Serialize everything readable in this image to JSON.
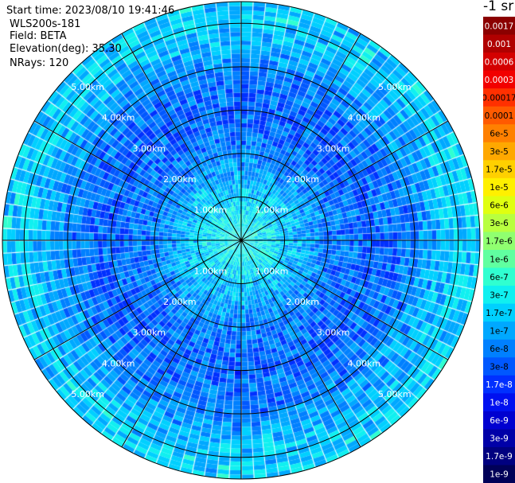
{
  "info": {
    "start_time": "Start time: 2023/08/10 19:41:46",
    "instrument": "WLS200s-181",
    "field": "Field: BETA",
    "elevation": "Elevation(deg): 35.30",
    "nrays": "NRays: 120"
  },
  "colorbar": {
    "unit_title": "-1 sr",
    "entries": [
      {
        "label": "0.0017",
        "color": "#8b0000",
        "text_color": "#ffffff"
      },
      {
        "label": "0.001",
        "color": "#b00000",
        "text_color": "#ffffff"
      },
      {
        "label": "0.0006",
        "color": "#d40000",
        "text_color": "#ffffff"
      },
      {
        "label": "0.0003",
        "color": "#f20000",
        "text_color": "#ffffff"
      },
      {
        "label": "0.00017",
        "color": "#ff3000",
        "text_color": "#000000"
      },
      {
        "label": "0.0001",
        "color": "#ff5a00",
        "text_color": "#000000"
      },
      {
        "label": "6e-5",
        "color": "#ff8000",
        "text_color": "#000000"
      },
      {
        "label": "3e-5",
        "color": "#ffa800",
        "text_color": "#000000"
      },
      {
        "label": "1.7e-5",
        "color": "#ffd000",
        "text_color": "#000000"
      },
      {
        "label": "1e-5",
        "color": "#fff000",
        "text_color": "#000000"
      },
      {
        "label": "6e-6",
        "color": "#e0ff10",
        "text_color": "#000000"
      },
      {
        "label": "3e-6",
        "color": "#b8ff40",
        "text_color": "#000000"
      },
      {
        "label": "1.7e-6",
        "color": "#90ff70",
        "text_color": "#000000"
      },
      {
        "label": "1e-6",
        "color": "#60ffa0",
        "text_color": "#000000"
      },
      {
        "label": "6e-7",
        "color": "#30ffd0",
        "text_color": "#000000"
      },
      {
        "label": "3e-7",
        "color": "#10f0f0",
        "text_color": "#000000"
      },
      {
        "label": "1.7e-7",
        "color": "#00d0ff",
        "text_color": "#000000"
      },
      {
        "label": "1e-7",
        "color": "#00a8ff",
        "text_color": "#000000"
      },
      {
        "label": "6e-8",
        "color": "#0080ff",
        "text_color": "#000000"
      },
      {
        "label": "3e-8",
        "color": "#0058ff",
        "text_color": "#000000"
      },
      {
        "label": "1.7e-8",
        "color": "#0030ff",
        "text_color": "#ffffff"
      },
      {
        "label": "1e-8",
        "color": "#0010f0",
        "text_color": "#ffffff"
      },
      {
        "label": "6e-9",
        "color": "#0000d0",
        "text_color": "#ffffff"
      },
      {
        "label": "3e-9",
        "color": "#0000a8",
        "text_color": "#ffffff"
      },
      {
        "label": "1.7e-9",
        "color": "#000080",
        "text_color": "#ffffff"
      },
      {
        "label": "1e-9",
        "color": "#000058",
        "text_color": "#ffffff"
      }
    ]
  },
  "chart_data": {
    "type": "heatmap",
    "projection": "polar (PPI scan)",
    "field": "BETA",
    "elevation_deg": 35.3,
    "n_rays": 120,
    "max_range_km": 5.5,
    "range_rings_km": [
      1,
      2,
      3,
      4,
      5
    ],
    "range_ring_labels": [
      "1.00km",
      "2.00km",
      "3.00km",
      "4.00km",
      "5.00km"
    ],
    "spokes_deg": [
      0,
      30,
      60,
      90,
      120,
      150,
      180,
      210,
      240,
      270,
      300,
      330
    ],
    "value_range": [
      1e-09,
      0.0017
    ],
    "dominant_values": [
      "6e-8",
      "1.7e-7"
    ],
    "ring_profile": [
      {
        "range_km": 0.5,
        "typical_value": "3e-7"
      },
      {
        "range_km": 1.0,
        "typical_value": "1.7e-7"
      },
      {
        "range_km": 2.0,
        "typical_value": "6e-8"
      },
      {
        "range_km": 3.0,
        "typical_value": "3e-8"
      },
      {
        "range_km": 4.0,
        "typical_value": "6e-8"
      },
      {
        "range_km": 5.0,
        "typical_value": "1.7e-7"
      }
    ],
    "grid": true
  }
}
